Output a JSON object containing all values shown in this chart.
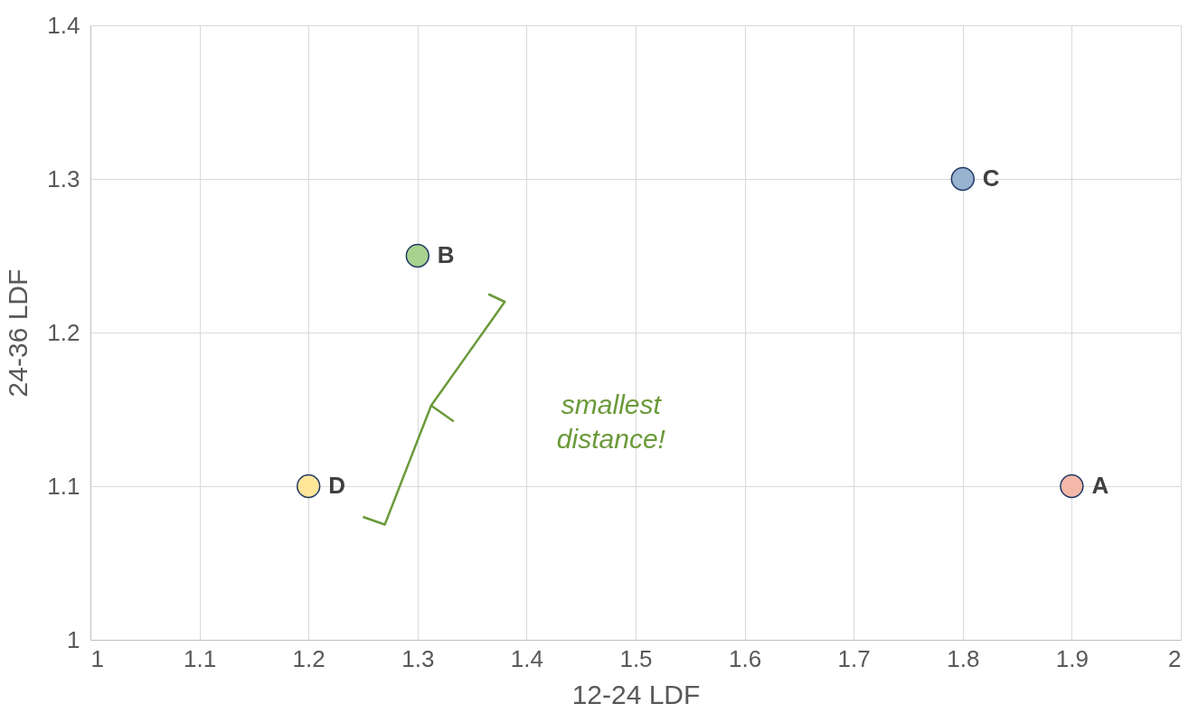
{
  "chart_data": {
    "type": "scatter",
    "xlabel": "12-24 LDF",
    "ylabel": "24-36 LDF",
    "series": [
      {
        "name": "A",
        "color": "#f4b9a8",
        "x": [
          1.9
        ],
        "values": [
          1.1
        ]
      },
      {
        "name": "B",
        "color": "#a9d18e",
        "x": [
          1.3
        ],
        "values": [
          1.25
        ]
      },
      {
        "name": "C",
        "color": "#97b3d0",
        "x": [
          1.8
        ],
        "values": [
          1.3
        ]
      },
      {
        "name": "D",
        "color": "#ffe699",
        "x": [
          1.2
        ],
        "values": [
          1.1
        ]
      }
    ],
    "annotations": [
      "smallest distance!"
    ],
    "xlim": [
      1,
      2
    ],
    "xticks": [
      1,
      1.1,
      1.2,
      1.3,
      1.4,
      1.5,
      1.6,
      1.7,
      1.8,
      1.9,
      2
    ],
    "ylim": [
      1,
      1.4
    ],
    "yticks": [
      1,
      1.1,
      1.2,
      1.3,
      1.4
    ],
    "grid": true,
    "legend": false,
    "marker": "circle"
  }
}
